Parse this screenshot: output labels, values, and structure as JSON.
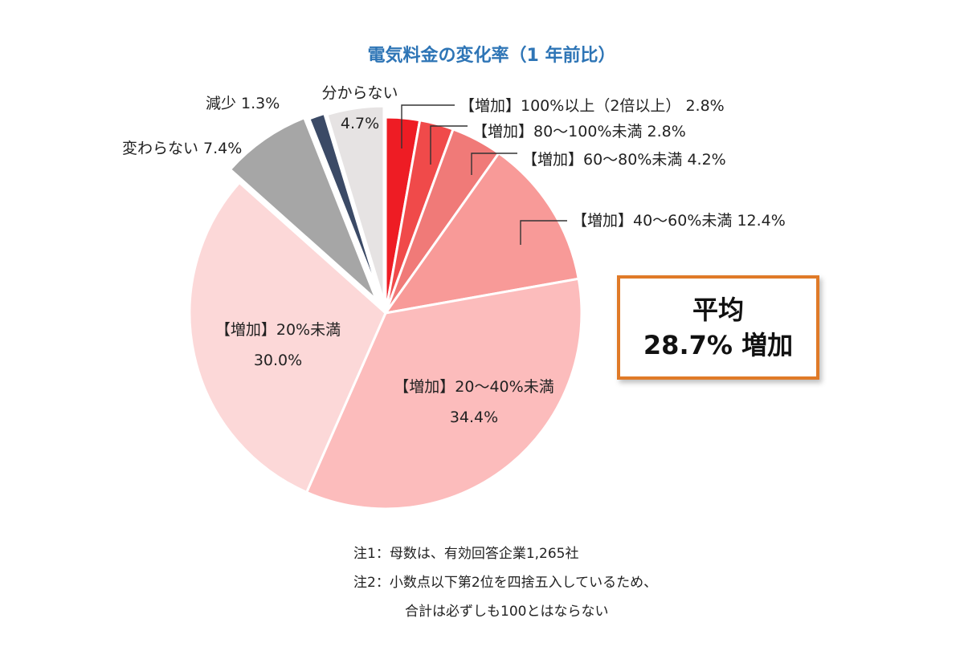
{
  "chart_data": {
    "type": "pie",
    "title": "電気料金の変化率（1 年前比）",
    "slices": [
      {
        "label": "【増加】100%以上（2倍以上）",
        "value": 2.8,
        "value_label": "2.8%",
        "color": "#ee1c24"
      },
      {
        "label": "【増加】80～100%未満",
        "value": 2.8,
        "value_label": "2.8%",
        "color": "#f04a4a"
      },
      {
        "label": "【増加】60～80%未満",
        "value": 4.2,
        "value_label": "4.2%",
        "color": "#f07a78"
      },
      {
        "label": "【増加】40～60%未満",
        "value": 12.4,
        "value_label": "12.4%",
        "color": "#f89a98"
      },
      {
        "label": "【増加】20～40%未満",
        "value": 34.4,
        "value_label": "34.4%",
        "color": "#fcbcbc"
      },
      {
        "label": "【増加】20%未満",
        "value": 30.0,
        "value_label": "30.0%",
        "color": "#fcd8d8"
      },
      {
        "label": "変わらない",
        "value": 7.4,
        "value_label": "7.4%",
        "color": "#a6a6a6"
      },
      {
        "label": "減少",
        "value": 1.3,
        "value_label": "1.3%",
        "color": "#3b4a66"
      },
      {
        "label": "分からない",
        "value": 4.7,
        "value_label": "4.7%",
        "color": "#e6e3e3"
      }
    ]
  },
  "average_box": {
    "line1": "平均",
    "line2": "28.7% 増加",
    "border_color": "#e07a28"
  },
  "notes": [
    "注1：母数は、有効回答企業1,265社",
    "注2：小数点以下第2位を四捨五入しているため、",
    "合計は必ずしも100とはならない"
  ]
}
